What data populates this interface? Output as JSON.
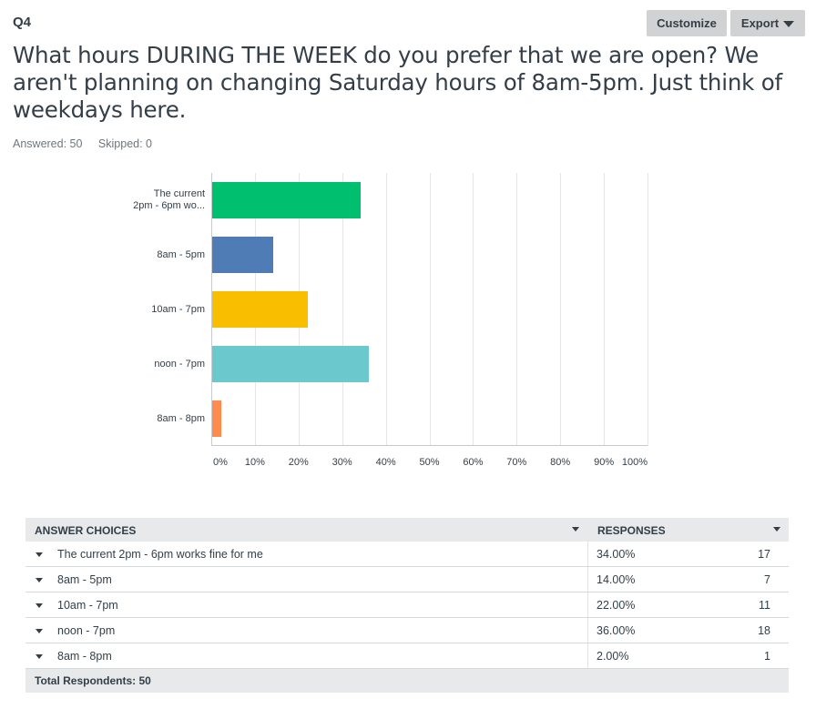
{
  "question": {
    "number": "Q4",
    "title": "What hours DURING THE WEEK do you prefer that we are open? We aren't planning on changing Saturday hours of 8am-5pm. Just think of weekdays here.",
    "answered": "Answered: 50",
    "skipped": "Skipped: 0"
  },
  "toolbar": {
    "customize_label": "Customize",
    "export_label": "Export"
  },
  "chart_data": {
    "type": "bar",
    "orientation": "horizontal",
    "categories": [
      "The current 2pm - 6pm works fine for me",
      "8am - 5pm",
      "10am - 7pm",
      "noon - 7pm",
      "8am - 8pm"
    ],
    "category_labels_shown": [
      [
        "The current",
        "2pm - 6pm wo..."
      ],
      [
        "8am - 5pm"
      ],
      [
        "10am - 7pm"
      ],
      [
        "noon - 7pm"
      ],
      [
        "8am - 8pm"
      ]
    ],
    "values": [
      34,
      14,
      22,
      36,
      2
    ],
    "colors": [
      "#00bf6f",
      "#507cb6",
      "#f9be00",
      "#6bc8cd",
      "#ff8b4f"
    ],
    "xlim": [
      0,
      100
    ],
    "x_ticks": [
      "0%",
      "10%",
      "20%",
      "30%",
      "40%",
      "50%",
      "60%",
      "70%",
      "80%",
      "90%",
      "100%"
    ],
    "grid": true
  },
  "table": {
    "header_choices": "ANSWER CHOICES",
    "header_responses": "RESPONSES",
    "rows": [
      {
        "choice": "The current 2pm - 6pm works fine for me",
        "percent": "34.00%",
        "count": "17"
      },
      {
        "choice": "8am - 5pm",
        "percent": "14.00%",
        "count": "7"
      },
      {
        "choice": "10am - 7pm",
        "percent": "22.00%",
        "count": "11"
      },
      {
        "choice": "noon - 7pm",
        "percent": "36.00%",
        "count": "18"
      },
      {
        "choice": "8am - 8pm",
        "percent": "2.00%",
        "count": "1"
      }
    ],
    "total_label": "Total Respondents: 50"
  }
}
